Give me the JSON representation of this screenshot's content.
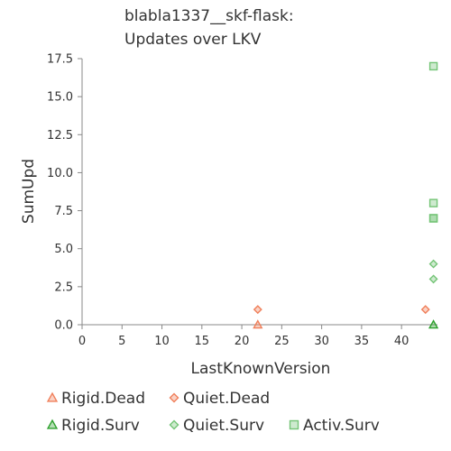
{
  "chart_data": {
    "type": "scatter",
    "title": "blabla1337__skf-flask:\nUpdates over LKV",
    "title_lines": [
      "blabla1337__skf-flask:",
      "Updates over LKV"
    ],
    "xlabel": "LastKnownVersion",
    "ylabel": "SumUpd",
    "xlim": [
      0,
      44.5
    ],
    "ylim": [
      0,
      17.5
    ],
    "xticks": [
      0,
      5,
      10,
      15,
      20,
      25,
      30,
      35,
      40
    ],
    "yticks": [
      0.0,
      2.5,
      5.0,
      7.5,
      10.0,
      12.5,
      15.0,
      17.5
    ],
    "yticks_labels": [
      "0.0",
      "2.5",
      "5.0",
      "7.5",
      "10.0",
      "12.5",
      "15.0",
      "17.5"
    ],
    "grid": false,
    "legend_position": "bottom",
    "series": [
      {
        "name": "Rigid.Dead",
        "marker": "triangle",
        "color": "#f07f5a",
        "points": [
          {
            "x": 22,
            "y": 0
          }
        ]
      },
      {
        "name": "Quiet.Dead",
        "marker": "diamond",
        "color": "#f07f5a",
        "points": [
          {
            "x": 22,
            "y": 1
          },
          {
            "x": 43,
            "y": 1
          }
        ]
      },
      {
        "name": "Rigid.Surv",
        "marker": "triangle",
        "color": "#2ca02c",
        "points": [
          {
            "x": 44,
            "y": 0
          }
        ]
      },
      {
        "name": "Quiet.Surv",
        "marker": "diamond",
        "color": "#74c476",
        "points": [
          {
            "x": 44,
            "y": 3
          },
          {
            "x": 44,
            "y": 4
          }
        ]
      },
      {
        "name": "Activ.Surv",
        "marker": "square",
        "color": "#74c476",
        "points": [
          {
            "x": 44,
            "y": 7
          },
          {
            "x": 44,
            "y": 7
          },
          {
            "x": 44,
            "y": 8
          },
          {
            "x": 44,
            "y": 17
          }
        ]
      }
    ]
  }
}
